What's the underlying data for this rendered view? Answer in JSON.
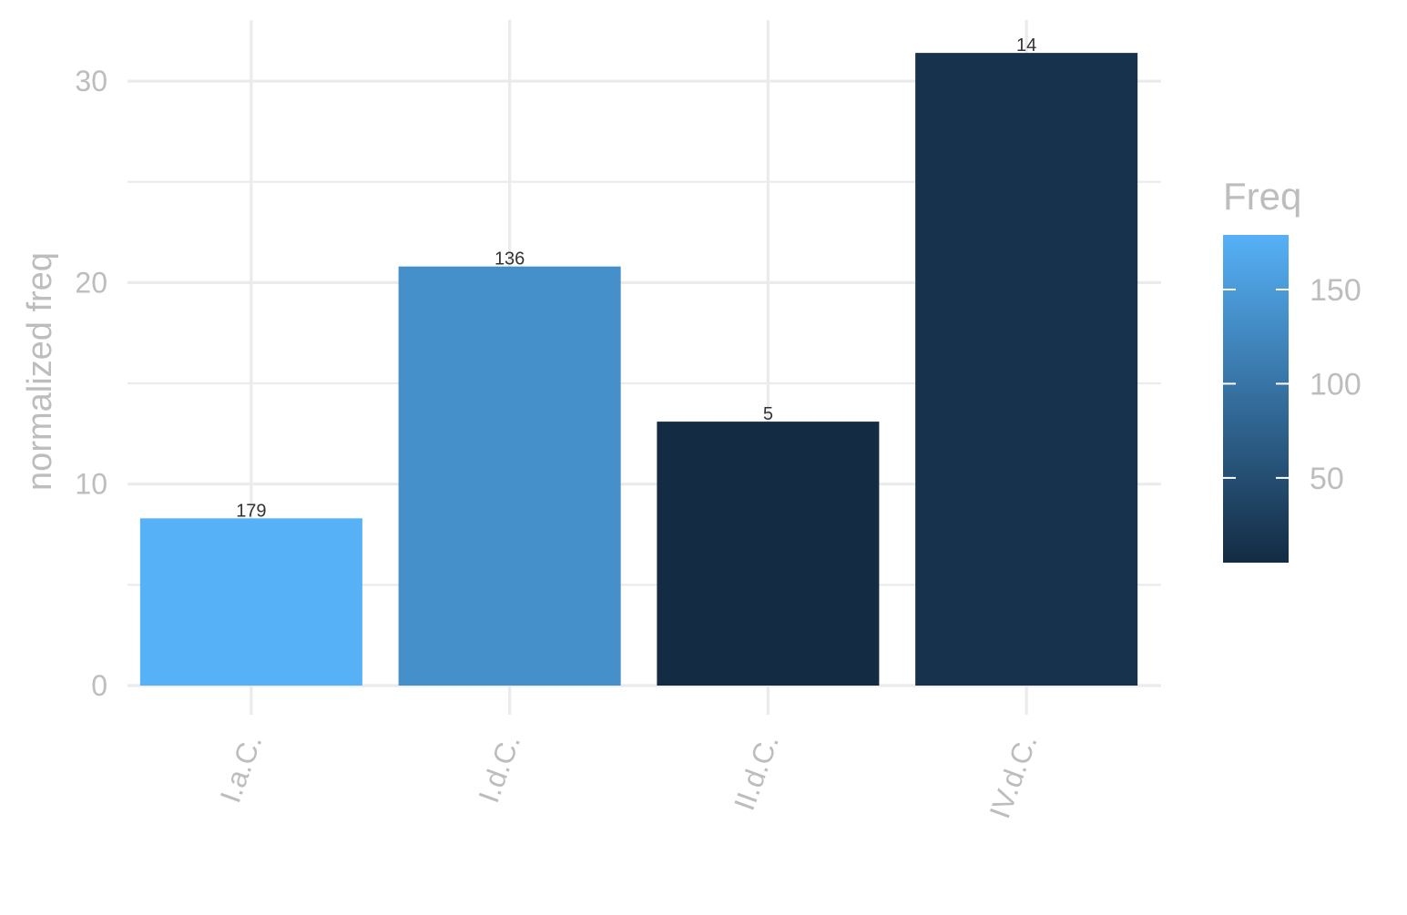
{
  "chart_data": {
    "type": "bar",
    "categories": [
      "I.a.C.",
      "I.d.C.",
      "II.d.C.",
      "IV.d.C."
    ],
    "values": [
      8.3,
      20.8,
      13.1,
      31.4
    ],
    "labels": [
      "179",
      "136",
      "5",
      "14"
    ],
    "fill_values": [
      179,
      136,
      5,
      14
    ],
    "title": "",
    "xlabel": "",
    "ylabel": "normalized freq",
    "ylim": [
      0,
      32
    ],
    "yticks": [
      0,
      10,
      20,
      30
    ],
    "ytick_labels": [
      "0",
      "10",
      "20",
      "30"
    ],
    "grid": true,
    "legend": {
      "title": "Freq",
      "type": "colorbar",
      "placement": "right",
      "range": [
        5,
        179
      ],
      "ticks": [
        50,
        100,
        150
      ],
      "tick_labels": [
        "50",
        "100",
        "150"
      ],
      "colors": {
        "low": "#132b43",
        "high": "#56b1f7"
      }
    }
  }
}
